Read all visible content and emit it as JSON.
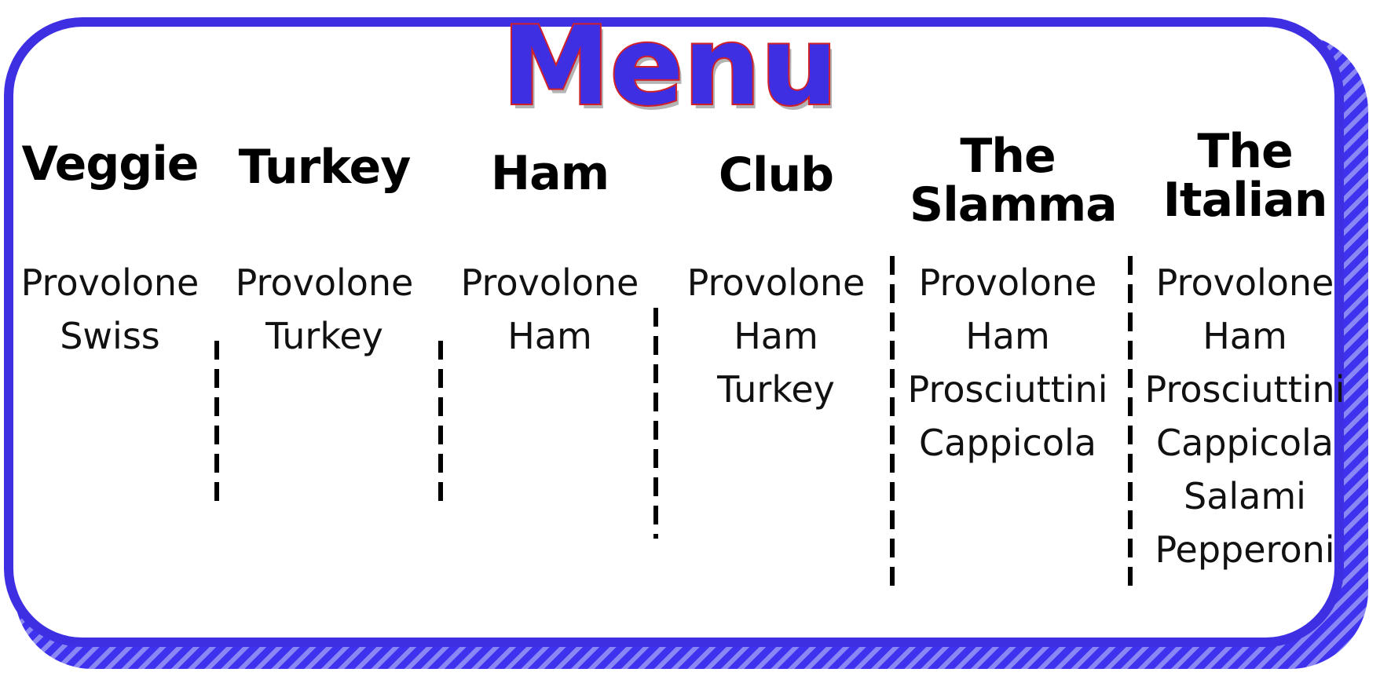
{
  "title": "Menu",
  "colors": {
    "frame": "#3f2fe3",
    "title_fill": "#3f2fe3",
    "title_outline": "#d0202a",
    "text": "#000000"
  },
  "sandwiches": [
    {
      "name": "Veggie",
      "ingredients": [
        "Provolone",
        "Swiss"
      ]
    },
    {
      "name": "Turkey",
      "ingredients": [
        "Provolone",
        "Turkey"
      ]
    },
    {
      "name": "Ham",
      "ingredients": [
        "Provolone",
        "Ham"
      ]
    },
    {
      "name": "Club",
      "ingredients": [
        "Provolone",
        "Ham",
        "Turkey"
      ]
    },
    {
      "name_line1": "The",
      "name_line2": "Slamma",
      "ingredients": [
        "Provolone",
        "Ham",
        "Prosciuttini",
        "Cappicola"
      ]
    },
    {
      "name_line1": "The",
      "name_line2": "Italian",
      "ingredients": [
        "Provolone",
        "Ham",
        "Prosciuttini",
        "Cappicola",
        "Salami",
        "Pepperoni"
      ]
    }
  ]
}
